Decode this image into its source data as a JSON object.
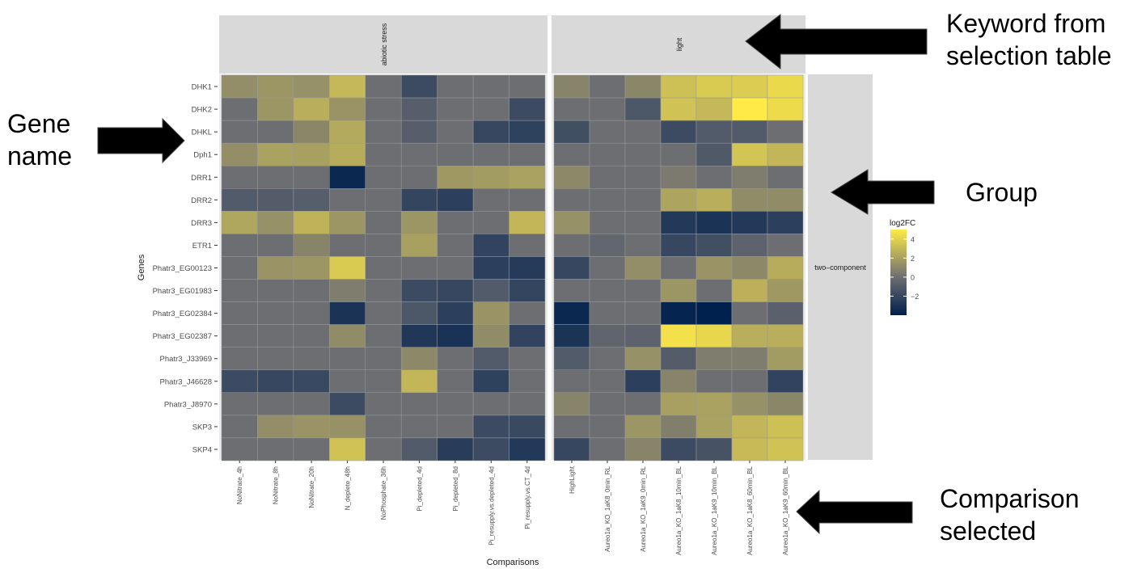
{
  "annotations": {
    "keyword": "Keyword from selection table",
    "keyword_line1": "Keyword from",
    "keyword_line2": "selection table",
    "gene_line1": "Gene",
    "gene_line2": "name",
    "group": "Group",
    "comparison_line1": "Comparison",
    "comparison_line2": "selected"
  },
  "colors": {
    "low": "#00204D",
    "mid": "#6D6E72",
    "high": "#FFEA46",
    "strip": "#D9D9D9",
    "panel_bg": "#EBEBEB",
    "grid": "#FFFFFF",
    "text": "#4D4D4D"
  },
  "chart_data": {
    "type": "heatmap",
    "xlabel": "Comparisons",
    "ylabel": "Genes",
    "row_facet": "two–component",
    "legend": {
      "title": "log2FC",
      "ticks": [
        "4",
        "2",
        "0",
        "−2"
      ],
      "tick_values": [
        4,
        2,
        0,
        -2
      ],
      "range": [
        -4,
        5
      ],
      "position": "right"
    },
    "genes": [
      "DHK1",
      "DHK2",
      "DHKL",
      "Dph1",
      "DRR1",
      "DRR2",
      "DRR3",
      "ETR1",
      "Phatr3_EG00123",
      "Phatr3_EG01983",
      "Phatr3_EG02384",
      "Phatr3_EG02387",
      "Phatr3_J33969",
      "Phatr3_J46628",
      "Phatr3_J8970",
      "SKP3",
      "SKP4"
    ],
    "panels": [
      {
        "name": "abiotic stress",
        "comparisons": [
          "NoNitrate_4h",
          "NoNitrate_8h",
          "NoNitrate_20h",
          "N_deplete_48h",
          "NoPhosphate_36h",
          "Pi_depleted_4d",
          "Pi_depleted_8d",
          "Pi_resupply.vs.depleted_4d",
          "Pi_resupply.vs.CT_4d"
        ],
        "values": [
          [
            1.3,
            1.6,
            1.4,
            3.0,
            0.0,
            -1.8,
            0.0,
            0.0,
            0.0
          ],
          [
            0.0,
            1.6,
            2.6,
            1.5,
            0.0,
            -0.8,
            0.0,
            0.0,
            -1.8
          ],
          [
            0.0,
            0.0,
            1.0,
            2.4,
            0.0,
            -0.8,
            0.0,
            -2.0,
            -2.3
          ],
          [
            1.3,
            2.1,
            2.0,
            2.5,
            0.0,
            0.0,
            0.0,
            0.0,
            0.0
          ],
          [
            0.0,
            0.0,
            0.0,
            -3.6,
            0.0,
            0.0,
            1.7,
            1.8,
            2.1
          ],
          [
            -1.0,
            -0.9,
            -0.8,
            0.0,
            0.0,
            -2.1,
            -2.4,
            0.0,
            0.0
          ],
          [
            2.3,
            1.4,
            2.8,
            1.6,
            0.0,
            1.6,
            0.0,
            0.0,
            2.9
          ],
          [
            0.0,
            0.0,
            0.9,
            0.0,
            0.0,
            2.0,
            0.0,
            -2.2,
            0.0
          ],
          [
            0.0,
            1.5,
            1.6,
            3.7,
            0.0,
            0.0,
            0.0,
            -2.4,
            -2.6
          ],
          [
            0.0,
            0.0,
            0.0,
            0.6,
            0.0,
            -1.8,
            -2.0,
            -1.0,
            -2.1
          ],
          [
            0.0,
            0.0,
            0.0,
            -3.0,
            0.0,
            -1.2,
            -2.4,
            1.5,
            0.0
          ],
          [
            0.0,
            0.0,
            0.0,
            1.2,
            0.0,
            -2.8,
            -3.1,
            1.2,
            -2.2
          ],
          [
            0.0,
            0.0,
            0.0,
            0.0,
            0.0,
            1.1,
            0.0,
            -1.0,
            0.0
          ],
          [
            -1.8,
            -2.0,
            -1.9,
            0.0,
            0.0,
            2.9,
            0.0,
            -2.3,
            0.0
          ],
          [
            0.0,
            0.0,
            0.0,
            -1.8,
            0.0,
            0.0,
            0.0,
            0.0,
            0.0
          ],
          [
            0.0,
            1.3,
            1.5,
            1.4,
            0.0,
            0.0,
            0.0,
            -1.8,
            -1.9
          ],
          [
            0.0,
            0.0,
            0.0,
            3.4,
            0.0,
            -1.0,
            -2.5,
            -1.8,
            -2.7
          ]
        ]
      },
      {
        "name": "light",
        "comparisons": [
          "HighLight",
          "Aureo1a_KO_1aK8_0min_RL",
          "Aureo1a_KO_1aK9_0min_RL",
          "Aureo1a_KO_1aK8_10min_BL",
          "Aureo1a_KO_1aK9_10min_BL",
          "Aureo1a_KO_1aK8_60min_BL",
          "Aureo1a_KO_1aK9_60min_BL"
        ],
        "values": [
          [
            0.9,
            0.0,
            1.0,
            3.3,
            3.7,
            3.8,
            4.3
          ],
          [
            0.0,
            0.0,
            -1.2,
            3.4,
            3.0,
            5.0,
            4.4
          ],
          [
            -1.6,
            0.0,
            0.0,
            -1.8,
            -1.0,
            -1.0,
            0.0
          ],
          [
            0.0,
            0.0,
            0.0,
            0.0,
            -1.1,
            3.5,
            2.9
          ],
          [
            1.1,
            0.0,
            0.0,
            0.5,
            0.0,
            0.6,
            0.0
          ],
          [
            0.0,
            0.0,
            0.0,
            2.2,
            2.6,
            1.2,
            1.2
          ],
          [
            1.4,
            0.0,
            0.0,
            -2.7,
            -3.0,
            -2.7,
            -2.4
          ],
          [
            0.0,
            -0.4,
            0.0,
            -2.0,
            -1.6,
            -0.6,
            0.0
          ],
          [
            -2.0,
            0.0,
            1.3,
            0.0,
            1.5,
            1.1,
            2.5
          ],
          [
            0.0,
            0.0,
            0.0,
            1.6,
            0.0,
            2.7,
            1.7
          ],
          [
            -3.6,
            0.0,
            0.0,
            -3.8,
            -4.0,
            0.0,
            -0.7
          ],
          [
            -3.0,
            -0.5,
            -0.6,
            4.6,
            4.2,
            2.6,
            2.6
          ],
          [
            -1.0,
            0.0,
            1.4,
            -0.9,
            0.6,
            0.6,
            1.8
          ],
          [
            0.0,
            0.0,
            -2.4,
            0.9,
            0.0,
            0.0,
            -2.2
          ],
          [
            0.9,
            0.0,
            0.0,
            2.0,
            2.1,
            1.4,
            1.0
          ],
          [
            0.0,
            0.0,
            1.6,
            0.7,
            2.1,
            2.9,
            3.3
          ],
          [
            -2.0,
            0.0,
            0.9,
            -1.8,
            -1.4,
            3.1,
            3.4
          ]
        ]
      }
    ]
  }
}
